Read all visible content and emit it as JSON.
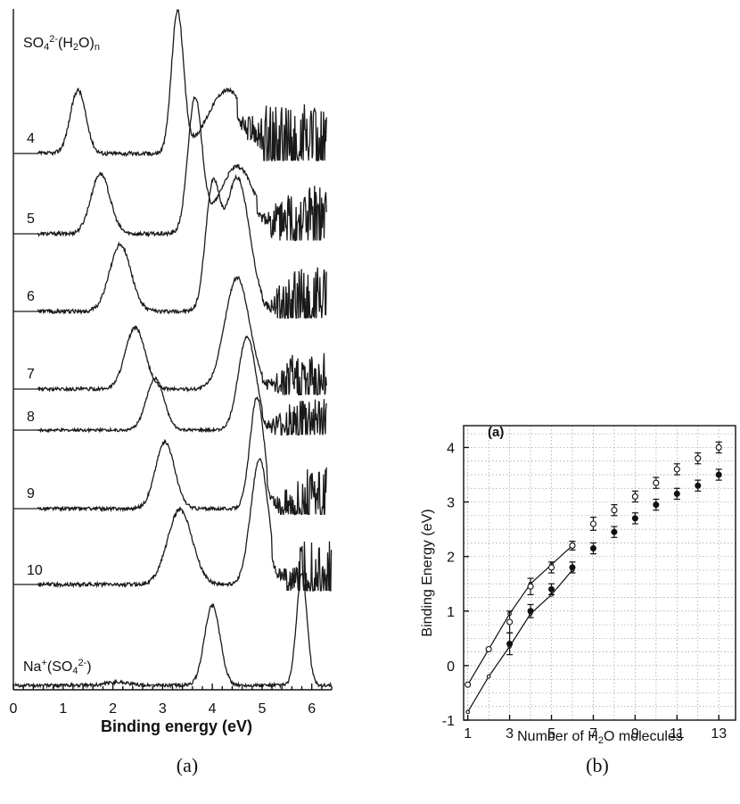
{
  "chart_data": [
    {
      "id": "a",
      "type": "line",
      "caption": "(a)",
      "title": "SO42-(H2O)n",
      "xlabel": "Binding energy (eV)",
      "xlim": [
        0,
        6.4
      ],
      "xticks": [
        "0",
        "1",
        "2",
        "3",
        "4",
        "5",
        "6"
      ],
      "series": [
        {
          "name": "4",
          "features": [
            {
              "center": 1.3,
              "height": 0.45,
              "width": 0.22
            },
            {
              "center": 3.3,
              "height": 1.0,
              "width": 0.17
            },
            {
              "center": 4.3,
              "height": 0.45,
              "width": 0.55
            }
          ],
          "noise_from": 4.5,
          "cutoff": 6.3
        },
        {
          "name": "5",
          "features": [
            {
              "center": 1.75,
              "height": 0.45,
              "width": 0.27
            },
            {
              "center": 3.65,
              "height": 1.0,
              "width": 0.2
            },
            {
              "center": 4.5,
              "height": 0.5,
              "width": 0.5
            }
          ],
          "noise_from": 4.9,
          "cutoff": 6.3
        },
        {
          "name": "6",
          "features": [
            {
              "center": 2.15,
              "height": 0.5,
              "width": 0.3
            },
            {
              "center": 4.0,
              "height": 0.85,
              "width": 0.2
            },
            {
              "center": 4.5,
              "height": 1.0,
              "width": 0.35
            }
          ],
          "noise_from": 5.0,
          "cutoff": 6.3
        },
        {
          "name": "7",
          "features": [
            {
              "center": 2.45,
              "height": 0.55,
              "width": 0.28
            },
            {
              "center": 4.5,
              "height": 1.0,
              "width": 0.35
            }
          ],
          "noise_from": 5.0,
          "cutoff": 6.3
        },
        {
          "name": "8",
          "features": [
            {
              "center": 2.85,
              "height": 0.55,
              "width": 0.25
            },
            {
              "center": 4.7,
              "height": 1.0,
              "width": 0.25
            }
          ],
          "noise_from": 5.0,
          "cutoff": 6.3
        },
        {
          "name": "9",
          "features": [
            {
              "center": 3.05,
              "height": 0.6,
              "width": 0.27
            },
            {
              "center": 4.9,
              "height": 1.0,
              "width": 0.2
            }
          ],
          "noise_from": 5.1,
          "cutoff": 6.3
        },
        {
          "name": "10",
          "features": [
            {
              "center": 3.35,
              "height": 0.6,
              "width": 0.35
            },
            {
              "center": 4.95,
              "height": 1.0,
              "width": 0.25
            }
          ],
          "noise_from": 5.2,
          "cutoff": 6.4
        },
        {
          "name": "Na+(SO42-)",
          "features": [
            {
              "center": 2.1,
              "height": 0.03,
              "width": 0.3
            },
            {
              "center": 4.0,
              "height": 0.72,
              "width": 0.22
            },
            {
              "center": 5.8,
              "height": 1.0,
              "width": 0.15
            }
          ],
          "noise_from": 7.0,
          "cutoff": 6.4
        }
      ]
    },
    {
      "id": "b",
      "type": "scatter",
      "caption": "(b)",
      "panel_label": "(a)",
      "xlabel": "Number of H2O molecules",
      "ylabel": "Binding Energy (eV)",
      "xlim": [
        0.8,
        13.8
      ],
      "ylim": [
        -1,
        4.4
      ],
      "xticks": [
        1,
        3,
        5,
        7,
        9,
        11,
        13
      ],
      "yticks": [
        -1,
        0,
        1,
        2,
        3,
        4
      ],
      "series": [
        {
          "name": "open",
          "marker": "open",
          "x": [
            1,
            2,
            3,
            4,
            5,
            6,
            7,
            8,
            9,
            10,
            11,
            12,
            13
          ],
          "y": [
            -0.35,
            0.3,
            0.8,
            1.45,
            1.8,
            2.2,
            2.6,
            2.85,
            3.1,
            3.35,
            3.6,
            3.8,
            4.0
          ],
          "err": [
            0,
            0,
            0.2,
            0.15,
            0.1,
            0.08,
            0.12,
            0.1,
            0.1,
            0.1,
            0.1,
            0.1,
            0.1
          ]
        },
        {
          "name": "filled",
          "marker": "filled",
          "x": [
            3,
            4,
            5,
            6,
            7,
            8,
            9,
            10,
            11,
            12,
            13
          ],
          "y": [
            0.4,
            1.0,
            1.4,
            1.8,
            2.15,
            2.45,
            2.7,
            2.95,
            3.15,
            3.3,
            3.5
          ],
          "err": [
            0.2,
            0.12,
            0.1,
            0.1,
            0.1,
            0.1,
            0.1,
            0.1,
            0.1,
            0.1,
            0.1
          ]
        }
      ],
      "fit_lines": [
        {
          "x": [
            1,
            2,
            3,
            4,
            5,
            6
          ],
          "y": [
            -0.35,
            0.3,
            0.95,
            1.5,
            1.85,
            2.2
          ]
        },
        {
          "x": [
            1,
            2,
            3,
            4,
            5,
            6
          ],
          "y": [
            -0.85,
            -0.2,
            0.35,
            0.95,
            1.3,
            1.75
          ]
        }
      ]
    }
  ]
}
